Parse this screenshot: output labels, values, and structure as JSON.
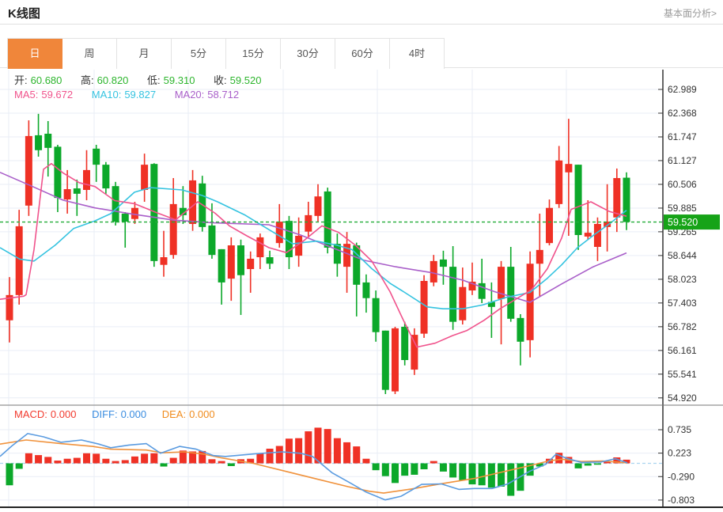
{
  "header": {
    "title": "K线图",
    "link": "基本面分析>"
  },
  "tabs": {
    "items": [
      "日",
      "周",
      "月",
      "5分",
      "15分",
      "30分",
      "60分",
      "4时"
    ],
    "active_index": 0
  },
  "info": {
    "open_label": "开:",
    "open": "60.680",
    "high_label": "高:",
    "high": "60.820",
    "low_label": "低:",
    "low": "59.310",
    "close_label": "收:",
    "close": "59.520",
    "ma5_label": "MA5:",
    "ma5": "59.672",
    "ma10_label": "MA10:",
    "ma10": "59.827",
    "ma20_label": "MA20:",
    "ma20": "58.712"
  },
  "macd_info": {
    "macd_label": "MACD:",
    "macd": "0.000",
    "diff_label": "DIFF:",
    "diff": "0.000",
    "dea_label": "DEA:",
    "dea": "0.000"
  },
  "price_tag": "59.520",
  "colors": {
    "up": "#ef3125",
    "down": "#0ca82a",
    "tab_active": "#f0863a",
    "ohlc_value": "#2db52d",
    "ma5": "#f0538c",
    "ma10": "#35c3e0",
    "ma20": "#a95fc9",
    "macd_label": "#f23b2f",
    "diff_label": "#3b8de0",
    "dea_label": "#f08c1e",
    "diff_line": "#5a9be0",
    "dea_line": "#f0923c",
    "price_line": "#22ac38",
    "price_tag_bg": "#16a317",
    "grid": "#e9eef6",
    "zero_dash": "#aad4f0",
    "axis": "#333333"
  },
  "chart_data": {
    "type": "candlestick+macd",
    "main": {
      "title": "K线图 (daily K-line)",
      "y_ticks": [
        62.989,
        62.368,
        61.747,
        61.127,
        60.506,
        59.885,
        59.265,
        58.644,
        58.023,
        57.403,
        56.782,
        56.161,
        55.541,
        54.92
      ],
      "last_price": 59.52,
      "candles_ohlc_columns": [
        "open",
        "high",
        "low",
        "close"
      ],
      "candles": [
        [
          56.95,
          58.08,
          56.37,
          57.61
        ],
        [
          57.61,
          59.84,
          57.36,
          59.41
        ],
        [
          59.95,
          62.18,
          59.68,
          61.77
        ],
        [
          61.79,
          62.35,
          61.23,
          61.4
        ],
        [
          61.83,
          62.16,
          60.71,
          61.46
        ],
        [
          61.49,
          61.54,
          59.78,
          60.15
        ],
        [
          60.11,
          60.88,
          59.74,
          60.38
        ],
        [
          60.4,
          60.63,
          59.68,
          60.26
        ],
        [
          60.36,
          61.4,
          60.09,
          60.88
        ],
        [
          61.44,
          61.54,
          60.57,
          61.02
        ],
        [
          61.02,
          61.09,
          60.26,
          60.4
        ],
        [
          60.46,
          60.57,
          59.43,
          59.53
        ],
        [
          59.74,
          59.78,
          58.85,
          59.53
        ],
        [
          59.6,
          60.05,
          59.47,
          59.89
        ],
        [
          60.36,
          61.31,
          60.05,
          61.02
        ],
        [
          61.04,
          61.06,
          58.35,
          58.5
        ],
        [
          58.4,
          59.29,
          58.09,
          58.6
        ],
        [
          58.66,
          60.67,
          58.56,
          59.99
        ],
        [
          59.89,
          60.46,
          59.47,
          59.7
        ],
        [
          59.47,
          60.88,
          59.29,
          60.61
        ],
        [
          60.53,
          60.73,
          59.27,
          59.39
        ],
        [
          59.43,
          60.01,
          58.56,
          58.66
        ],
        [
          58.81,
          58.81,
          57.36,
          57.94
        ],
        [
          58.04,
          59.12,
          57.46,
          58.91
        ],
        [
          58.91,
          59.06,
          57.09,
          58.13
        ],
        [
          58.29,
          58.75,
          57.67,
          58.56
        ],
        [
          58.6,
          59.22,
          58.29,
          59.12
        ],
        [
          58.6,
          58.77,
          58.29,
          58.43
        ],
        [
          58.97,
          59.99,
          58.85,
          59.53
        ],
        [
          59.55,
          59.68,
          58.29,
          58.6
        ],
        [
          58.64,
          59.64,
          58.35,
          59.16
        ],
        [
          59.27,
          60.05,
          59.12,
          59.7
        ],
        [
          59.68,
          60.51,
          59.53,
          60.19
        ],
        [
          60.32,
          60.42,
          58.7,
          58.85
        ],
        [
          58.95,
          59.22,
          58.09,
          58.43
        ],
        [
          58.35,
          59.26,
          57.67,
          58.95
        ],
        [
          58.91,
          58.98,
          57.05,
          57.88
        ],
        [
          57.94,
          58.15,
          57.15,
          57.53
        ],
        [
          57.53,
          57.73,
          56.39,
          56.64
        ],
        [
          56.68,
          56.68,
          55.02,
          55.13
        ],
        [
          55.09,
          56.78,
          55.02,
          56.74
        ],
        [
          56.78,
          56.91,
          55.77,
          55.91
        ],
        [
          55.66,
          56.74,
          55.52,
          56.57
        ],
        [
          56.6,
          58.13,
          56.49,
          57.98
        ],
        [
          57.94,
          58.66,
          57.84,
          58.5
        ],
        [
          58.54,
          58.77,
          57.88,
          58.35
        ],
        [
          58.35,
          58.89,
          56.7,
          56.91
        ],
        [
          56.95,
          58.33,
          56.84,
          57.82
        ],
        [
          57.73,
          58.46,
          57.61,
          57.96
        ],
        [
          57.92,
          58.56,
          57.4,
          57.51
        ],
        [
          57.43,
          57.94,
          56.49,
          57.3
        ],
        [
          57.51,
          58.5,
          56.32,
          58.35
        ],
        [
          58.35,
          58.87,
          56.91,
          56.99
        ],
        [
          57.01,
          57.11,
          55.77,
          56.39
        ],
        [
          56.43,
          58.75,
          55.98,
          58.43
        ],
        [
          58.43,
          59.74,
          57.57,
          58.79
        ],
        [
          58.97,
          60.11,
          58.91,
          59.89
        ],
        [
          59.99,
          61.51,
          59.89,
          61.13
        ],
        [
          60.82,
          62.22,
          59.16,
          61.04
        ],
        [
          61.02,
          61.02,
          58.79,
          59.18
        ],
        [
          59.14,
          60.09,
          59.05,
          59.24
        ],
        [
          58.87,
          59.64,
          58.5,
          59.47
        ],
        [
          59.39,
          60.51,
          58.75,
          59.53
        ],
        [
          59.64,
          60.92,
          59.26,
          60.67
        ],
        [
          60.68,
          60.82,
          59.31,
          59.52
        ]
      ],
      "ma5_points": [
        [
          0,
          57.5
        ],
        [
          30,
          57.58
        ],
        [
          33,
          57.62
        ],
        [
          43,
          58.8
        ],
        [
          55,
          60.9
        ],
        [
          65,
          61.05
        ],
        [
          80,
          60.8
        ],
        [
          100,
          60.55
        ],
        [
          120,
          60.45
        ],
        [
          145,
          60.08
        ],
        [
          170,
          60.0
        ],
        [
          200,
          59.75
        ],
        [
          222,
          59.58
        ],
        [
          250,
          60.05
        ],
        [
          272,
          59.75
        ],
        [
          290,
          59.42
        ],
        [
          312,
          59.16
        ],
        [
          340,
          58.85
        ],
        [
          362,
          58.72
        ],
        [
          382,
          59.0
        ],
        [
          407,
          59.42
        ],
        [
          428,
          59.25
        ],
        [
          450,
          58.9
        ],
        [
          470,
          58.5
        ],
        [
          493,
          57.7
        ],
        [
          510,
          56.95
        ],
        [
          527,
          56.25
        ],
        [
          550,
          56.35
        ],
        [
          572,
          56.55
        ],
        [
          590,
          56.68
        ],
        [
          612,
          56.95
        ],
        [
          632,
          57.25
        ],
        [
          652,
          57.5
        ],
        [
          672,
          57.75
        ],
        [
          692,
          58.3
        ],
        [
          710,
          59.1
        ],
        [
          722,
          59.85
        ],
        [
          747,
          60.05
        ],
        [
          770,
          59.8
        ],
        [
          792,
          59.672
        ]
      ],
      "ma10_points": [
        [
          0,
          58.85
        ],
        [
          25,
          58.55
        ],
        [
          43,
          58.5
        ],
        [
          70,
          58.92
        ],
        [
          93,
          59.35
        ],
        [
          120,
          59.55
        ],
        [
          140,
          59.74
        ],
        [
          170,
          60.3
        ],
        [
          190,
          60.42
        ],
        [
          230,
          60.36
        ],
        [
          255,
          60.22
        ],
        [
          275,
          60.05
        ],
        [
          310,
          59.7
        ],
        [
          340,
          59.32
        ],
        [
          370,
          58.95
        ],
        [
          400,
          59.02
        ],
        [
          425,
          58.92
        ],
        [
          445,
          58.8
        ],
        [
          470,
          58.3
        ],
        [
          493,
          57.92
        ],
        [
          510,
          57.7
        ],
        [
          540,
          57.3
        ],
        [
          560,
          57.25
        ],
        [
          585,
          57.25
        ],
        [
          610,
          57.35
        ],
        [
          640,
          57.55
        ],
        [
          670,
          57.68
        ],
        [
          692,
          58.05
        ],
        [
          710,
          58.4
        ],
        [
          730,
          58.85
        ],
        [
          752,
          59.2
        ],
        [
          772,
          59.5
        ],
        [
          792,
          59.827
        ]
      ],
      "ma20_points": [
        [
          0,
          60.82
        ],
        [
          40,
          60.46
        ],
        [
          80,
          60.09
        ],
        [
          120,
          59.89
        ],
        [
          170,
          59.72
        ],
        [
          220,
          59.57
        ],
        [
          270,
          59.5
        ],
        [
          340,
          59.45
        ],
        [
          380,
          59.18
        ],
        [
          420,
          58.85
        ],
        [
          460,
          58.52
        ],
        [
          500,
          58.35
        ],
        [
          545,
          58.2
        ],
        [
          585,
          58.0
        ],
        [
          625,
          57.7
        ],
        [
          670,
          57.42
        ],
        [
          710,
          57.9
        ],
        [
          750,
          58.35
        ],
        [
          792,
          58.712
        ]
      ]
    },
    "macd": {
      "y_ticks": [
        0.735,
        0.223,
        -0.29,
        -0.803
      ],
      "histogram": [
        -0.48,
        -0.12,
        0.22,
        0.18,
        0.14,
        0.06,
        0.1,
        0.12,
        0.22,
        0.21,
        0.1,
        0.05,
        0.07,
        0.15,
        0.21,
        0.22,
        -0.07,
        0.12,
        0.28,
        0.26,
        0.27,
        0.09,
        0.05,
        -0.06,
        0.09,
        0.1,
        0.21,
        0.32,
        0.38,
        0.54,
        0.55,
        0.7,
        0.78,
        0.75,
        0.55,
        0.46,
        0.37,
        0.1,
        -0.15,
        -0.28,
        -0.43,
        -0.27,
        -0.25,
        -0.13,
        0.05,
        -0.18,
        -0.31,
        -0.37,
        -0.46,
        -0.48,
        -0.53,
        -0.51,
        -0.71,
        -0.6,
        -0.27,
        -0.07,
        0.1,
        0.23,
        0.14,
        -0.11,
        -0.05,
        -0.03,
        0.04,
        0.13,
        0.08
      ],
      "diff_points": [
        [
          0,
          0.15
        ],
        [
          15,
          0.38
        ],
        [
          35,
          0.65
        ],
        [
          55,
          0.58
        ],
        [
          77,
          0.46
        ],
        [
          103,
          0.51
        ],
        [
          125,
          0.42
        ],
        [
          140,
          0.34
        ],
        [
          163,
          0.4
        ],
        [
          185,
          0.43
        ],
        [
          203,
          0.22
        ],
        [
          227,
          0.37
        ],
        [
          248,
          0.31
        ],
        [
          270,
          0.17
        ],
        [
          285,
          0.15
        ],
        [
          323,
          0.21
        ],
        [
          357,
          0.25
        ],
        [
          380,
          0.22
        ],
        [
          395,
          0.15
        ],
        [
          420,
          -0.21
        ],
        [
          443,
          -0.43
        ],
        [
          463,
          -0.63
        ],
        [
          487,
          -0.8
        ],
        [
          507,
          -0.72
        ],
        [
          533,
          -0.46
        ],
        [
          558,
          -0.45
        ],
        [
          580,
          -0.57
        ],
        [
          600,
          -0.55
        ],
        [
          622,
          -0.55
        ],
        [
          642,
          -0.45
        ],
        [
          670,
          -0.17
        ],
        [
          690,
          -0.02
        ],
        [
          703,
          0.2
        ],
        [
          718,
          0.1
        ],
        [
          735,
          0.02
        ],
        [
          760,
          0.03
        ],
        [
          778,
          0.1
        ],
        [
          793,
          0.01
        ]
      ],
      "dea_points": [
        [
          0,
          0.42
        ],
        [
          33,
          0.51
        ],
        [
          77,
          0.43
        ],
        [
          117,
          0.37
        ],
        [
          140,
          0.31
        ],
        [
          185,
          0.29
        ],
        [
          205,
          0.23
        ],
        [
          233,
          0.25
        ],
        [
          258,
          0.2
        ],
        [
          280,
          0.12
        ],
        [
          320,
          0.0
        ],
        [
          360,
          -0.17
        ],
        [
          400,
          -0.34
        ],
        [
          440,
          -0.51
        ],
        [
          467,
          -0.61
        ],
        [
          485,
          -0.65
        ],
        [
          520,
          -0.56
        ],
        [
          560,
          -0.44
        ],
        [
          600,
          -0.33
        ],
        [
          640,
          -0.17
        ],
        [
          670,
          -0.05
        ],
        [
          693,
          0.05
        ],
        [
          710,
          0.09
        ],
        [
          735,
          0.04
        ],
        [
          762,
          0.05
        ],
        [
          793,
          0.01
        ]
      ]
    }
  }
}
